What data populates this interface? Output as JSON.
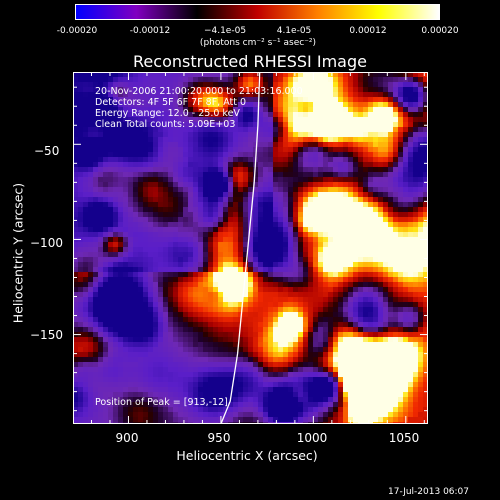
{
  "colorbar": {
    "ticks": [
      "-0.00020",
      "-0.00012",
      "−4.1e-05",
      "4.1e-05",
      "0.00012",
      "0.00020"
    ],
    "unit_label": "(photons cm⁻² s⁻¹ asec⁻²)",
    "colors": [
      "#0000ff",
      "#8000c0",
      "#000000",
      "#c00000",
      "#ff8000",
      "#ffff00",
      "#ffffff"
    ]
  },
  "info": {
    "time": "20-Nov-2006 21:00:20.000 to 21:03:16.000",
    "detectors": "Detectors: 4F 5F 6F 7F 8F, Att 0",
    "energy": "Energy Range: 12.0 - 25.0 keV",
    "clean": "Clean     Total counts: 5.09E+03",
    "peak": "Position of Peak = [913,-12]"
  },
  "footer": "17-Jul-2013 06:07",
  "chart_data": {
    "type": "heatmap",
    "title": "Reconstructed RHESSI Image",
    "xlabel": "Heliocentric X (arcsec)",
    "ylabel": "Heliocentric Y (arcsec)",
    "xlim": [
      870,
      1062
    ],
    "ylim": [
      -197,
      -12
    ],
    "xticks": [
      900,
      950,
      1000,
      1050
    ],
    "yticks": [
      -50,
      -100,
      -150
    ],
    "xtick_labels": [
      "900",
      "950",
      "1000",
      "1050"
    ],
    "ytick_labels": [
      "−50",
      "−100",
      "−150"
    ],
    "colorbar_range": [
      -0.0002,
      0.0002
    ],
    "limb_curve": {
      "x": [
        971,
        970,
        968,
        965,
        962,
        959,
        955,
        950
      ],
      "y": [
        -12,
        -40,
        -70,
        -100,
        -130,
        -160,
        -185,
        -197
      ]
    }
  }
}
